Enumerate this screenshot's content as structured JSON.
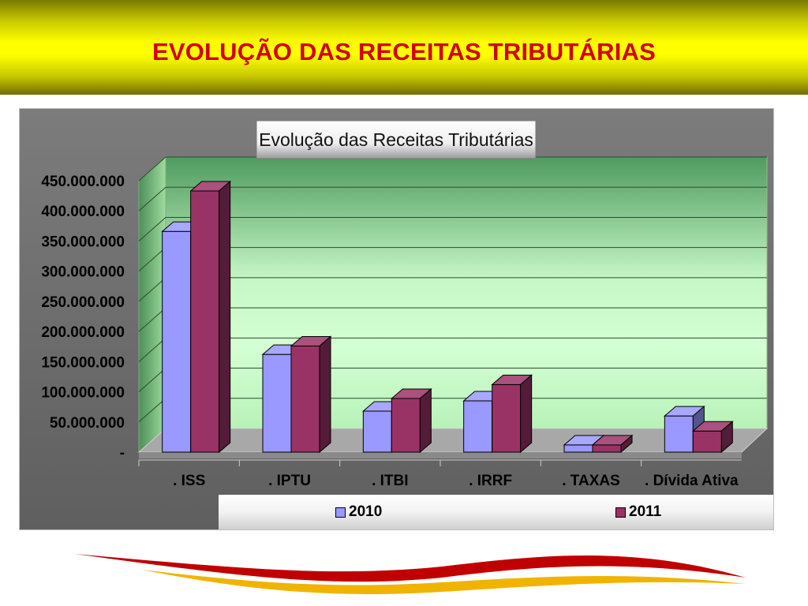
{
  "slide": {
    "title": "EVOLUÇÃO DAS RECEITAS TRIBUTÁRIAS"
  },
  "colors": {
    "series_2010": "#9999ff",
    "series_2011": "#993366",
    "title_red": "#d10000",
    "header_yellow": "#ffff00"
  },
  "chart_data": {
    "type": "bar",
    "title": "Evolução das Receitas Tributárias",
    "categories": [
      ". ISS",
      ". IPTU",
      ". ITBI",
      ". IRRF",
      ". TAXAS",
      ". Dívida Ativa"
    ],
    "series": [
      {
        "name": "2010",
        "values": [
          366000000,
          162000000,
          68000000,
          85000000,
          12000000,
          60000000
        ]
      },
      {
        "name": "2011",
        "values": [
          433000000,
          176000000,
          89000000,
          112000000,
          12000000,
          35000000
        ]
      }
    ],
    "ylim": [
      0,
      450000000
    ],
    "yticks": [
      0,
      50000000,
      100000000,
      150000000,
      200000000,
      250000000,
      300000000,
      350000000,
      400000000,
      450000000
    ],
    "ytick_labels": [
      "-",
      "50.000.000",
      "100.000.000",
      "150.000.000",
      "200.000.000",
      "250.000.000",
      "300.000.000",
      "350.000.000",
      "400.000.000",
      "450.000.000"
    ],
    "grid": true,
    "legend": "bottom",
    "xlabel": "",
    "ylabel": ""
  }
}
